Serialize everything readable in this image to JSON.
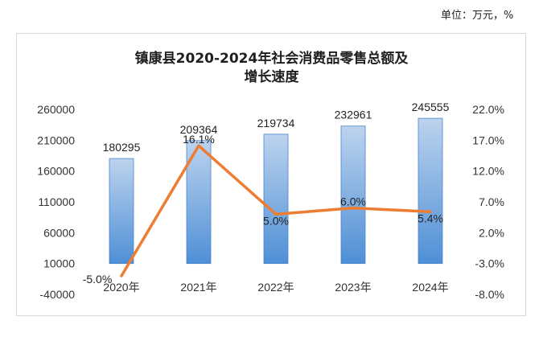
{
  "unit_note": "单位：万元，%",
  "chart_data": {
    "type": "bar+line",
    "title_lines": [
      "镇康县2020-2024年社会消费品零售总额及",
      "增长速度"
    ],
    "categories": [
      "2020年",
      "2021年",
      "2022年",
      "2023年",
      "2024年"
    ],
    "series": [
      {
        "type": "bar",
        "axis": "left",
        "values": [
          180295,
          209364,
          219734,
          232961,
          245555
        ],
        "labels": [
          "180295",
          "209364",
          "219734",
          "232961",
          "245555"
        ]
      },
      {
        "type": "line",
        "axis": "right",
        "values": [
          -5.0,
          16.1,
          5.0,
          6.0,
          5.4
        ],
        "labels": [
          "-5.0%",
          "16.1%",
          "5.0%",
          "6.0%",
          "5.4%"
        ]
      }
    ],
    "y_left": {
      "min": -40000,
      "max": 260000,
      "ticks": [
        "-40000",
        "10000",
        "60000",
        "110000",
        "160000",
        "210000",
        "260000"
      ]
    },
    "y_right": {
      "min": -8.0,
      "max": 22.0,
      "ticks": [
        "-8.0%",
        "-3.0%",
        "2.0%",
        "7.0%",
        "12.0%",
        "17.0%",
        "22.0%"
      ]
    },
    "colors": {
      "bar_top": "#bcd3ee",
      "bar_bottom": "#4f8fd6",
      "bar_edge": "#4a86c8",
      "line": "#ed7d31"
    }
  }
}
